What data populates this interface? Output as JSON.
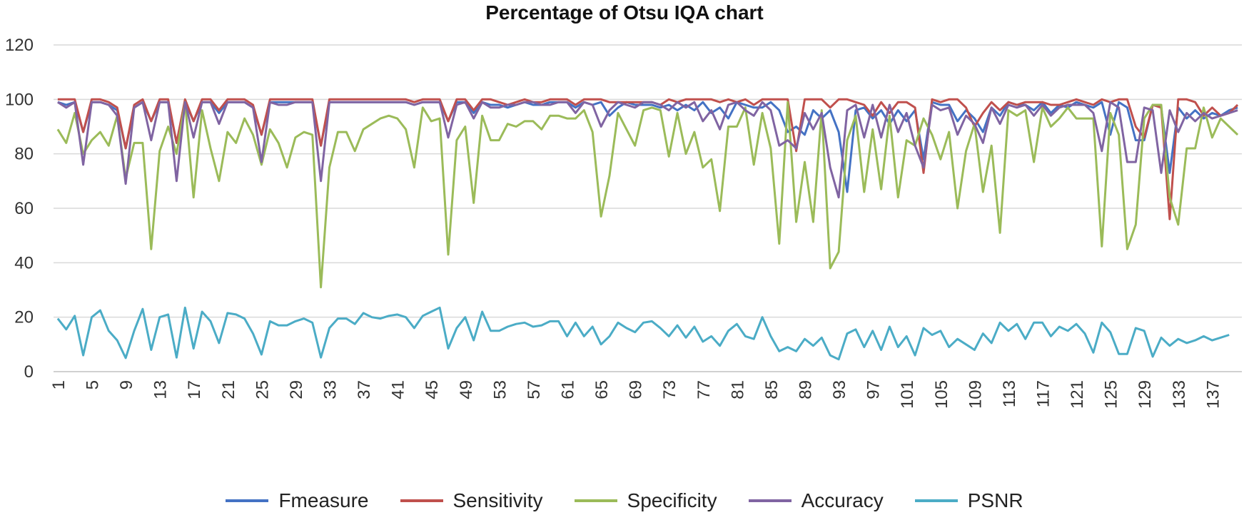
{
  "chart_data": {
    "type": "line",
    "title": "Percentage of Otsu IQA chart",
    "xlabel": "",
    "ylabel": "",
    "ylim": [
      0,
      120
    ],
    "yticks": [
      "0",
      "20",
      "40",
      "60",
      "80",
      "100",
      "120"
    ],
    "x_start": 1,
    "x_end": 140,
    "x_tick_labels": [
      "1",
      "5",
      "9",
      "13",
      "17",
      "21",
      "25",
      "29",
      "33",
      "37",
      "41",
      "45",
      "49",
      "53",
      "57",
      "61",
      "65",
      "69",
      "73",
      "77",
      "81",
      "85",
      "89",
      "93",
      "97",
      "101",
      "105",
      "109",
      "113",
      "117",
      "121",
      "125",
      "129",
      "133",
      "137"
    ],
    "grid": "horizontal",
    "legend_position": "bottom",
    "series": [
      {
        "name": "Fmeasure",
        "color": "#4472C4",
        "values": [
          99,
          98,
          99,
          88,
          99,
          99,
          98,
          96,
          82,
          97,
          99,
          92,
          99,
          99,
          84,
          99,
          92,
          99,
          99,
          95,
          99,
          99,
          99,
          97,
          87,
          99,
          99,
          99,
          99,
          99,
          99,
          83,
          99,
          99,
          99,
          99,
          99,
          99,
          99,
          99,
          99,
          99,
          98,
          99,
          99,
          99,
          92,
          99,
          99,
          95,
          99,
          98,
          98,
          97,
          98,
          99,
          98,
          98,
          99,
          99,
          99,
          97,
          99,
          98,
          99,
          94,
          97,
          99,
          98,
          98,
          98,
          97,
          98,
          96,
          98,
          96,
          99,
          95,
          97,
          93,
          99,
          98,
          97,
          97,
          99,
          96,
          88,
          90,
          87,
          96,
          93,
          96,
          88,
          66,
          96,
          97,
          93,
          96,
          91,
          96,
          92,
          96,
          78,
          99,
          98,
          98,
          92,
          96,
          93,
          88,
          97,
          94,
          99,
          98,
          98,
          96,
          99,
          95,
          98,
          97,
          99,
          98,
          97,
          99,
          87,
          99,
          97,
          85,
          85,
          98,
          97,
          73,
          97,
          93,
          96,
          93,
          95,
          94,
          96,
          97
        ]
      },
      {
        "name": "Sensitivity",
        "color": "#C0504D",
        "values": [
          100,
          100,
          100,
          88,
          100,
          100,
          99,
          97,
          82,
          98,
          100,
          92,
          100,
          100,
          84,
          100,
          92,
          100,
          100,
          96,
          100,
          100,
          100,
          98,
          87,
          100,
          100,
          100,
          100,
          100,
          100,
          83,
          100,
          100,
          100,
          100,
          100,
          100,
          100,
          100,
          100,
          100,
          99,
          100,
          100,
          100,
          92,
          100,
          100,
          96,
          100,
          100,
          99,
          98,
          99,
          100,
          99,
          99,
          100,
          100,
          100,
          98,
          100,
          100,
          100,
          99,
          99,
          99,
          99,
          99,
          99,
          98,
          100,
          99,
          100,
          100,
          100,
          100,
          99,
          100,
          99,
          100,
          98,
          100,
          100,
          100,
          100,
          81,
          100,
          100,
          100,
          97,
          100,
          100,
          99,
          98,
          94,
          99,
          95,
          99,
          99,
          97,
          73,
          100,
          99,
          100,
          100,
          97,
          90,
          95,
          99,
          96,
          99,
          98,
          99,
          99,
          99,
          98,
          98,
          99,
          100,
          99,
          98,
          100,
          99,
          100,
          100,
          90,
          86,
          98,
          97,
          56,
          100,
          100,
          99,
          94,
          97,
          94,
          95,
          98
        ]
      },
      {
        "name": "Specificity",
        "color": "#9BBB59",
        "values": [
          89,
          84,
          95,
          80,
          85,
          88,
          83,
          94,
          71,
          84,
          84,
          45,
          81,
          90,
          80,
          99,
          64,
          96,
          82,
          70,
          88,
          84,
          93,
          87,
          76,
          89,
          84,
          75,
          86,
          88,
          87,
          31,
          75,
          88,
          88,
          81,
          89,
          91,
          93,
          94,
          93,
          89,
          75,
          97,
          92,
          93,
          43,
          85,
          90,
          62,
          94,
          85,
          85,
          91,
          90,
          92,
          92,
          89,
          94,
          94,
          93,
          93,
          96,
          88,
          57,
          72,
          95,
          89,
          83,
          96,
          97,
          96,
          79,
          95,
          80,
          88,
          75,
          78,
          59,
          90,
          90,
          97,
          76,
          95,
          82,
          47,
          99,
          55,
          77,
          55,
          96,
          38,
          44,
          85,
          94,
          66,
          89,
          67,
          94,
          64,
          85,
          83,
          93,
          87,
          78,
          88,
          60,
          81,
          91,
          66,
          83,
          51,
          96,
          94,
          96,
          77,
          97,
          90,
          93,
          97,
          93,
          93,
          93,
          46,
          95,
          87,
          45,
          54,
          93,
          98,
          98,
          64,
          54,
          82,
          82,
          97,
          86,
          93,
          90,
          87
        ]
      },
      {
        "name": "Accuracy",
        "color": "#8064A2",
        "values": [
          99,
          97,
          99,
          76,
          99,
          99,
          98,
          94,
          69,
          97,
          99,
          85,
          99,
          99,
          70,
          99,
          86,
          99,
          99,
          91,
          99,
          99,
          99,
          97,
          77,
          99,
          98,
          98,
          99,
          99,
          99,
          70,
          99,
          99,
          99,
          99,
          99,
          99,
          99,
          99,
          99,
          99,
          98,
          99,
          99,
          99,
          86,
          98,
          99,
          93,
          99,
          97,
          97,
          98,
          98,
          99,
          99,
          98,
          98,
          99,
          99,
          95,
          99,
          98,
          90,
          96,
          99,
          98,
          97,
          99,
          99,
          98,
          96,
          99,
          97,
          99,
          92,
          96,
          89,
          98,
          99,
          96,
          94,
          99,
          96,
          83,
          85,
          82,
          95,
          89,
          95,
          75,
          64,
          96,
          98,
          86,
          98,
          86,
          98,
          88,
          95,
          83,
          75,
          98,
          96,
          97,
          87,
          94,
          91,
          84,
          97,
          91,
          98,
          97,
          98,
          94,
          98,
          94,
          97,
          98,
          98,
          98,
          95,
          81,
          99,
          97,
          77,
          77,
          97,
          96,
          73,
          96,
          88,
          95,
          92,
          95,
          93,
          94,
          95,
          96
        ]
      },
      {
        "name": "PSNR",
        "color": "#4BACC6",
        "values": [
          19.5,
          15.5,
          20.5,
          6,
          20,
          22.5,
          15,
          11.5,
          5,
          15,
          23,
          8,
          20,
          21,
          5.2,
          23.5,
          8.5,
          22,
          18.5,
          10.5,
          21.5,
          21,
          19.5,
          14,
          6.3,
          18.5,
          17,
          17,
          18.5,
          19.5,
          18,
          5.2,
          16,
          19.5,
          19.5,
          17.5,
          21.5,
          20,
          19.5,
          20.5,
          21,
          20,
          16,
          20.5,
          22,
          23.5,
          8.5,
          16,
          20,
          11.5,
          22,
          15,
          15,
          16.5,
          17.5,
          18,
          16.5,
          17,
          18.5,
          18.5,
          13,
          18,
          13,
          16.5,
          10,
          13,
          18,
          16,
          14.5,
          18,
          18.5,
          16,
          13,
          17,
          12.5,
          16.5,
          11,
          13,
          9.5,
          15,
          17.5,
          13,
          12,
          20,
          13,
          7.5,
          9,
          7.5,
          12,
          9.5,
          12.5,
          6,
          4.5,
          14,
          15.5,
          9,
          15,
          8,
          16.5,
          9,
          13,
          6,
          16,
          13.5,
          15,
          9,
          12,
          10,
          8,
          14,
          10.5,
          18,
          15,
          17.5,
          12,
          18,
          18,
          13,
          16.5,
          15,
          17.5,
          14,
          7,
          18,
          14.5,
          6.5,
          6.5,
          16,
          15,
          5.5,
          12.5,
          9.5,
          12,
          10.5,
          11.5,
          13,
          11.5,
          12.5,
          13.5
        ]
      }
    ]
  }
}
